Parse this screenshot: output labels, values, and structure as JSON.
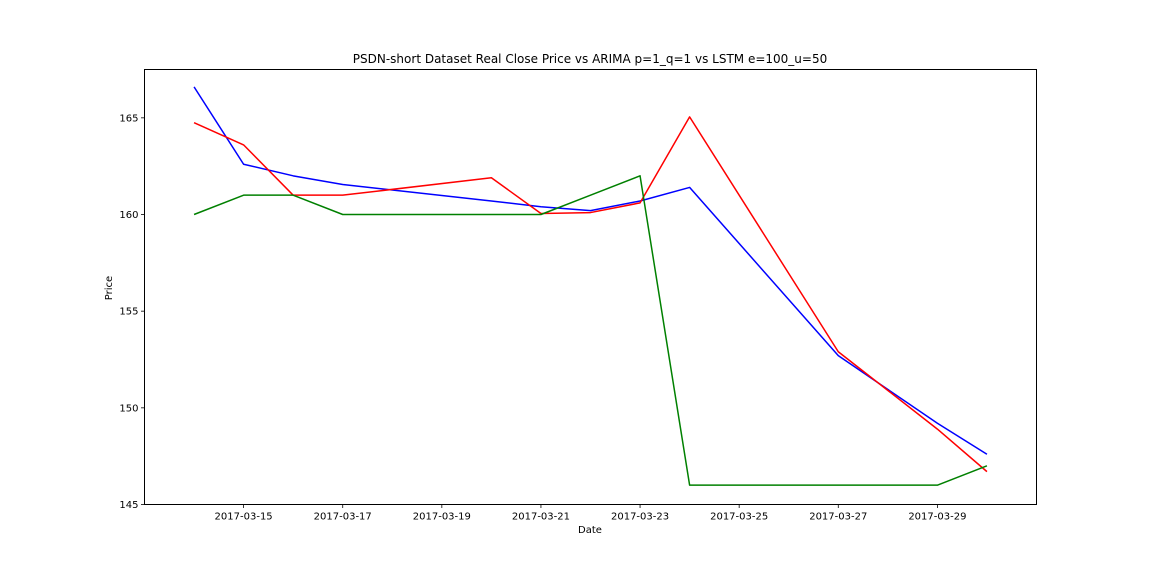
{
  "chart_data": {
    "type": "line",
    "title": "PSDN-short Dataset Real Close Price vs ARIMA p=1_q=1 vs LSTM e=100_u=50",
    "xlabel": "Date",
    "ylabel": "Price",
    "x": [
      "2017-03-14",
      "2017-03-15",
      "2017-03-16",
      "2017-03-17",
      "2017-03-20",
      "2017-03-21",
      "2017-03-22",
      "2017-03-23",
      "2017-03-24",
      "2017-03-27",
      "2017-03-29",
      "2017-03-30"
    ],
    "x_ticks": [
      "2017-03-15",
      "2017-03-17",
      "2017-03-19",
      "2017-03-21",
      "2017-03-23",
      "2017-03-25",
      "2017-03-27",
      "2017-03-29"
    ],
    "y_ticks": [
      145,
      150,
      155,
      160,
      165
    ],
    "xlim": [
      "2017-03-13",
      "2017-03-31"
    ],
    "ylim": [
      145,
      167.5
    ],
    "grid": false,
    "series": [
      {
        "color": "#0000ff",
        "values": [
          166.6,
          162.6,
          162.0,
          161.55,
          160.7,
          160.4,
          160.2,
          160.7,
          161.4,
          152.7,
          149.2,
          147.6
        ]
      },
      {
        "color": "#ff0000",
        "values": [
          164.75,
          163.6,
          161.0,
          161.0,
          161.9,
          160.05,
          160.1,
          160.6,
          165.05,
          152.9,
          148.9,
          146.7
        ]
      },
      {
        "color": "#008000",
        "values": [
          160.0,
          161.0,
          161.0,
          160.0,
          160.0,
          160.0,
          161.0,
          162.0,
          146.0,
          146.0,
          146.0,
          147.0
        ]
      }
    ]
  }
}
